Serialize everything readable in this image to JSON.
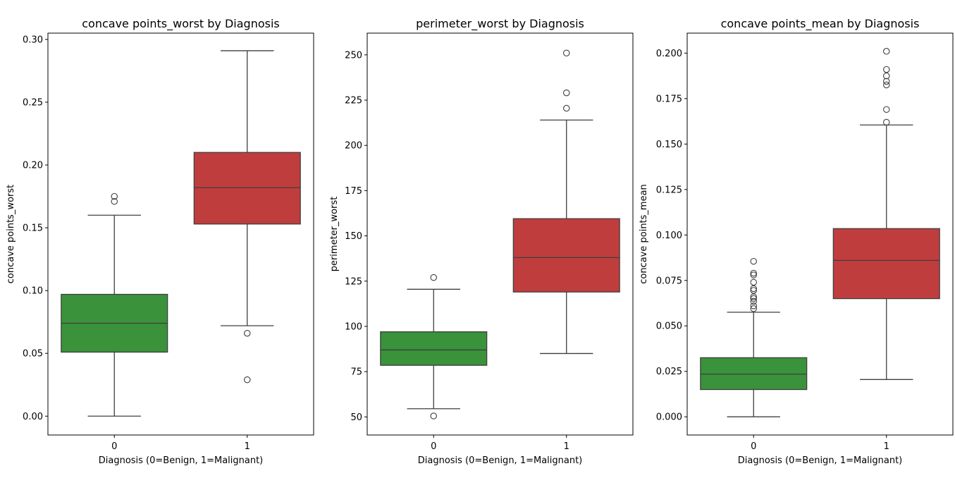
{
  "chart_data": [
    {
      "type": "box",
      "title": "concave points_worst by Diagnosis",
      "xlabel": "Diagnosis (0=Benign, 1=Malignant)",
      "ylabel": "concave points_worst",
      "categories": [
        "0",
        "1"
      ],
      "ylim": [
        -0.015,
        0.305
      ],
      "yticks": [
        0.0,
        0.05,
        0.1,
        0.15,
        0.2,
        0.25,
        0.3
      ],
      "ytick_labels": [
        "0.00",
        "0.05",
        "0.10",
        "0.15",
        "0.20",
        "0.25",
        "0.30"
      ],
      "boxes": [
        {
          "category": "0",
          "whisker_low": 0.0,
          "q1": 0.051,
          "median": 0.074,
          "q3": 0.097,
          "whisker_high": 0.16,
          "outliers": [
            0.175,
            0.171
          ],
          "color": "#3a923a"
        },
        {
          "category": "1",
          "whisker_low": 0.072,
          "q1": 0.153,
          "median": 0.182,
          "q3": 0.21,
          "whisker_high": 0.291,
          "outliers": [
            0.066,
            0.029
          ],
          "color": "#c03d3e"
        }
      ]
    },
    {
      "type": "box",
      "title": "perimeter_worst by Diagnosis",
      "xlabel": "Diagnosis (0=Benign, 1=Malignant)",
      "ylabel": "perimeter_worst",
      "categories": [
        "0",
        "1"
      ],
      "ylim": [
        40,
        262
      ],
      "yticks": [
        50,
        75,
        100,
        125,
        150,
        175,
        200,
        225,
        250
      ],
      "ytick_labels": [
        "50",
        "75",
        "100",
        "125",
        "150",
        "175",
        "200",
        "225",
        "250"
      ],
      "boxes": [
        {
          "category": "0",
          "whisker_low": 54.5,
          "q1": 78.5,
          "median": 87.0,
          "q3": 97.0,
          "whisker_high": 120.5,
          "outliers": [
            127.0,
            50.5
          ],
          "color": "#3a923a"
        },
        {
          "category": "1",
          "whisker_low": 85.0,
          "q1": 119.0,
          "median": 138.0,
          "q3": 159.5,
          "whisker_high": 214.0,
          "outliers": [
            251.0,
            229.0,
            220.5
          ],
          "color": "#c03d3e"
        }
      ]
    },
    {
      "type": "box",
      "title": "concave points_mean by Diagnosis",
      "xlabel": "Diagnosis (0=Benign, 1=Malignant)",
      "ylabel": "concave points_mean",
      "categories": [
        "0",
        "1"
      ],
      "ylim": [
        -0.01,
        0.211
      ],
      "yticks": [
        0.0,
        0.025,
        0.05,
        0.075,
        0.1,
        0.125,
        0.15,
        0.175,
        0.2
      ],
      "ytick_labels": [
        "0.000",
        "0.025",
        "0.050",
        "0.075",
        "0.100",
        "0.125",
        "0.150",
        "0.175",
        "0.200"
      ],
      "boxes": [
        {
          "category": "0",
          "whisker_low": 0.0,
          "q1": 0.015,
          "median": 0.0235,
          "q3": 0.0325,
          "whisker_high": 0.0575,
          "outliers": [
            0.0855,
            0.079,
            0.078,
            0.074,
            0.0705,
            0.0695,
            0.066,
            0.065,
            0.0635,
            0.061,
            0.0595
          ],
          "color": "#3a923a"
        },
        {
          "category": "1",
          "whisker_low": 0.0205,
          "q1": 0.065,
          "median": 0.086,
          "q3": 0.1035,
          "whisker_high": 0.1605,
          "outliers": [
            0.201,
            0.191,
            0.1875,
            0.1845,
            0.1825,
            0.169,
            0.162
          ],
          "color": "#c03d3e"
        }
      ]
    }
  ]
}
